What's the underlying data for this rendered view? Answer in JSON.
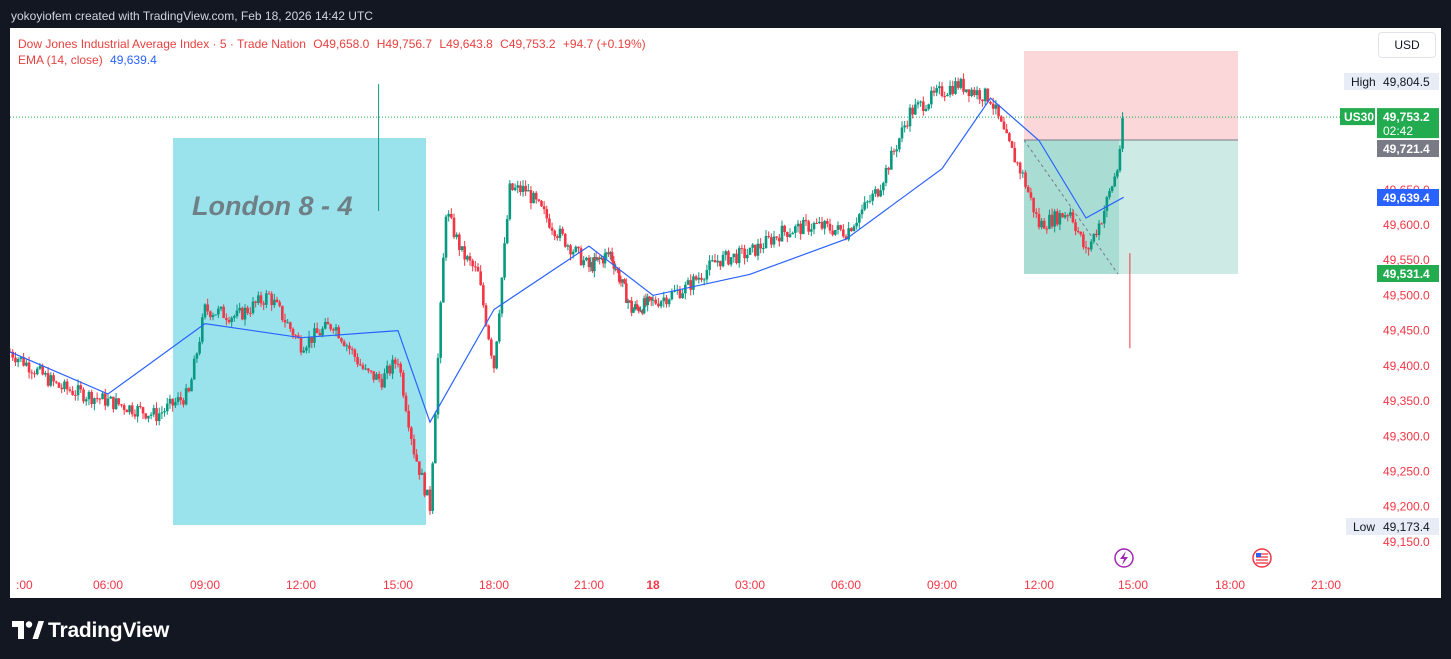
{
  "header": {
    "created_text": "yokoyiofem created with TradingView.com, Feb 18, 2026 14:42 UTC"
  },
  "legend": {
    "symbol": "Dow Jones Industrial Average Index · 5 · Trade Nation",
    "o_label": "O",
    "o_value": "49,658.0",
    "h_label": "H",
    "h_value": "49,756.7",
    "l_label": "L",
    "l_value": "49,643.8",
    "c_label": "C",
    "c_value": "49,753.2",
    "change": "+94.7 (+0.19%)",
    "ema_label": "EMA (14, close)",
    "ema_value": "49,639.4"
  },
  "currency_button": "USD",
  "annotation": {
    "session_box_label": "London 8 - 4"
  },
  "price_labels": {
    "high_label": "High",
    "high_value": "49,804.5",
    "symbol_tag": "US30",
    "last_price": "49,753.2",
    "countdown": "02:42",
    "entry_price": "49,721.4",
    "ema_price": "49,639.4",
    "stop_price": "49,531.4",
    "low_label": "Low",
    "low_value": "49,173.4"
  },
  "footer": {
    "brand": "TradingView"
  },
  "colors": {
    "up": "#089981",
    "down": "#f23645",
    "ema": "#2962ff",
    "session_box": "#9be3ec",
    "risk_zone": "#fbd7da",
    "reward_zone": "#cdeae4",
    "last_price_bg": "#22ab4f",
    "ema_tag_bg": "#2962ff",
    "stop_tag_bg": "#22ab4f",
    "entry_tag_bg": "#787b86",
    "axis_text": "#f23645"
  },
  "icons": [
    "lightning-event-icon",
    "us-flag-event-icon",
    "tradingview-logo-icon"
  ],
  "chart_data": {
    "type": "candlestick",
    "title": "Dow Jones Industrial Average Index · 5 · Trade Nation",
    "y_axis_ticks": [
      49150,
      49200,
      49250,
      49300,
      49350,
      49400,
      49450,
      49500,
      49550,
      49600,
      49650
    ],
    "y_axis_tick_labels": [
      "49,150.0",
      "49,200.0",
      "49,250.0",
      "49,300.0",
      "49,350.0",
      "49,400.0",
      "49,450.0",
      "49,500.0",
      "49,550.0",
      "49,600.0",
      "49,650.0"
    ],
    "x_axis_tick_labels": [
      ":00",
      "06:00",
      "09:00",
      "12:00",
      "15:00",
      "18:00",
      "21:00",
      "18",
      "03:00",
      "06:00",
      "09:00",
      "12:00",
      "15:00",
      "18:00",
      "21:00"
    ],
    "ylim": [
      49130,
      49860
    ],
    "series": [
      {
        "name": "US30",
        "type": "close-path",
        "x": [
          "03:00",
          "04:30",
          "06:00",
          "07:30",
          "08:30",
          "09:00",
          "10:00",
          "11:00",
          "12:00",
          "13:00",
          "14:00",
          "14:30",
          "15:00",
          "15:30",
          "16:00",
          "16:30",
          "17:00",
          "17:30",
          "18:00",
          "18:30",
          "19:00",
          "20:00",
          "21:00",
          "22:00",
          "23:00",
          "00:00",
          "01:00",
          "02:00",
          "03:00",
          "04:00",
          "05:00",
          "06:00",
          "07:00",
          "08:00",
          "09:00",
          "09:30",
          "10:00",
          "10:30",
          "11:00",
          "11:30",
          "12:00",
          "13:00",
          "13:30",
          "14:00",
          "14:30",
          "14:42"
        ],
        "values": [
          49420,
          49370,
          49350,
          49330,
          49360,
          49480,
          49470,
          49500,
          49430,
          49460,
          49390,
          49380,
          49410,
          49280,
          49200,
          49620,
          49560,
          49530,
          49400,
          49650,
          49650,
          49590,
          49540,
          49560,
          49480,
          49490,
          49510,
          49550,
          49560,
          49590,
          49600,
          49590,
          49650,
          49760,
          49790,
          49800,
          49790,
          49780,
          49720,
          49670,
          49600,
          49620,
          49560,
          49610,
          49680,
          49753.2
        ]
      },
      {
        "name": "EMA (14, close)",
        "type": "line",
        "x": [
          "03:00",
          "06:00",
          "09:00",
          "12:00",
          "15:00",
          "16:00",
          "18:00",
          "21:00",
          "00:00",
          "03:00",
          "06:00",
          "09:00",
          "10:30",
          "12:00",
          "13:30",
          "14:42"
        ],
        "values": [
          49420,
          49360,
          49460,
          49440,
          49450,
          49320,
          49480,
          49570,
          49500,
          49530,
          49580,
          49680,
          49780,
          49720,
          49610,
          49639.4
        ]
      }
    ],
    "levels": {
      "high": 49804.5,
      "low": 49173.4,
      "last": 49753.2,
      "entry": 49721.4,
      "ema": 49639.4,
      "stop": 49531.4
    },
    "annotations": [
      "London 8 - 4"
    ],
    "grid": false,
    "legend_position": "top-left"
  }
}
